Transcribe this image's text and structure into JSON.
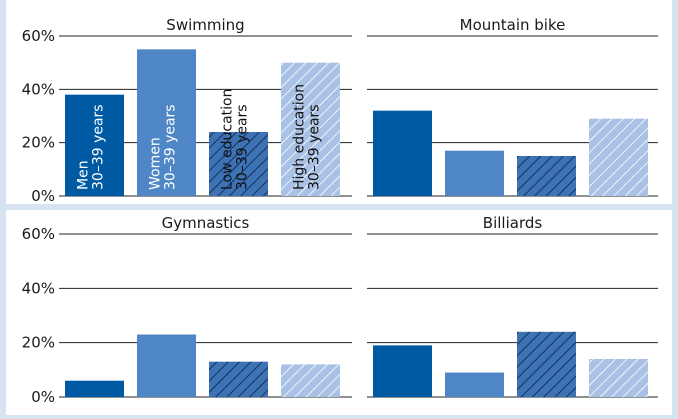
{
  "chart_data": [
    {
      "type": "bar",
      "title": "Swimming",
      "categories": [
        "Men 30–39 years",
        "Women 30–39 years",
        "Low education 30–39 years",
        "High education 30–39 years"
      ],
      "values": [
        38,
        55,
        24,
        50
      ],
      "ylim": [
        0,
        60
      ],
      "yticks": [
        "0%",
        "20%",
        "40%",
        "60%"
      ],
      "bar_labels": [
        [
          "Men",
          "30–39 years"
        ],
        [
          "Women",
          "30–39 years"
        ],
        [
          "Low education",
          "30–39 years"
        ],
        [
          "High education",
          "30–39 years"
        ]
      ]
    },
    {
      "type": "bar",
      "title": "Mountain bike",
      "categories": [
        "Men 30–39 years",
        "Women 30–39 years",
        "Low education 30–39 years",
        "High education 30–39 years"
      ],
      "values": [
        32,
        17,
        15,
        29
      ],
      "ylim": [
        0,
        60
      ]
    },
    {
      "type": "bar",
      "title": "Gymnastics",
      "categories": [
        "Men 30–39 years",
        "Women 30–39 years",
        "Low education 30–39 years",
        "High education 30–39 years"
      ],
      "values": [
        6,
        23,
        13,
        12
      ],
      "ylim": [
        0,
        60
      ],
      "yticks": [
        "0%",
        "20%",
        "40%",
        "60%"
      ]
    },
    {
      "type": "bar",
      "title": "Billiards",
      "categories": [
        "Men 30–39 years",
        "Women 30–39 years",
        "Low education 30–39 years",
        "High education 30–39 years"
      ],
      "values": [
        19,
        9,
        24,
        14
      ],
      "ylim": [
        0,
        60
      ]
    }
  ],
  "colors": {
    "men": "#005aa3",
    "women": "#4f87c6",
    "low_education": "#3d72b4",
    "high_education": "#a9c1e4",
    "hatch": "#12335e",
    "hatch_light": "#ffffff",
    "gridline": "#222222",
    "frame": "#d7e3f0"
  }
}
